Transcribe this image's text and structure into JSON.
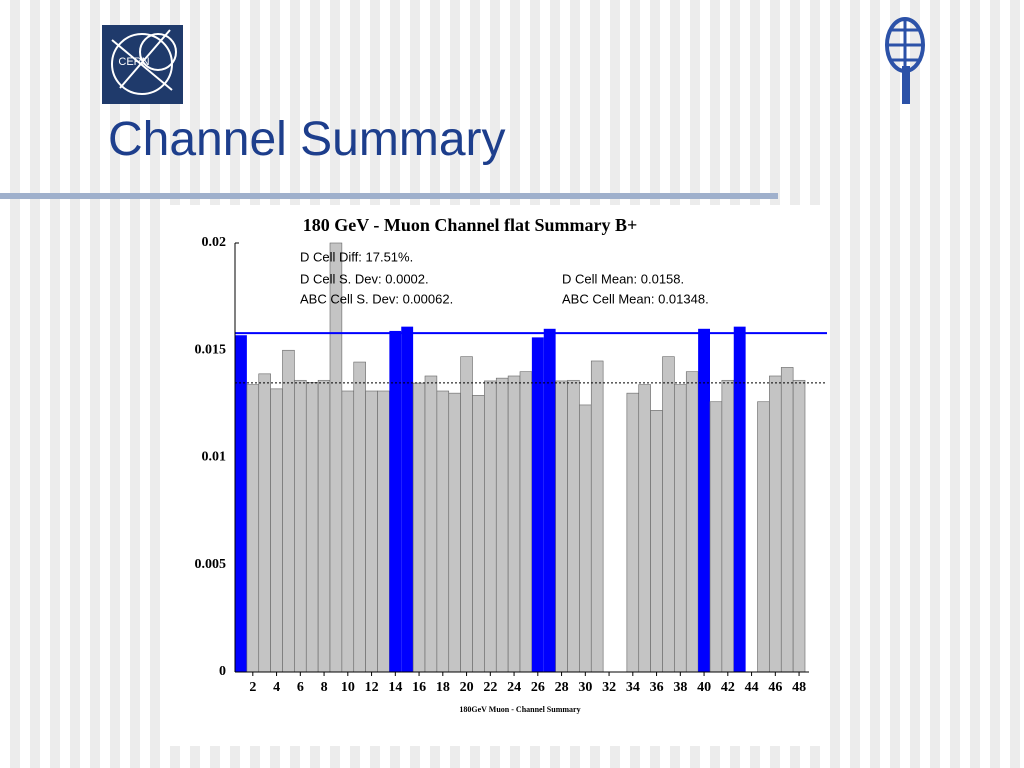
{
  "slide": {
    "title": "Channel Summary",
    "logo_text": "CERN"
  },
  "chart_data": {
    "type": "bar",
    "title": "180 GeV - Muon Channel flat Summary B+",
    "x_label": "180GeV Muon - Channel Summary",
    "x": [
      1,
      2,
      3,
      4,
      5,
      6,
      7,
      8,
      9,
      10,
      11,
      12,
      13,
      14,
      15,
      16,
      17,
      18,
      19,
      20,
      21,
      22,
      23,
      24,
      25,
      26,
      27,
      28,
      29,
      30,
      31,
      32,
      33,
      34,
      35,
      36,
      37,
      38,
      39,
      40,
      41,
      42,
      43,
      44,
      45,
      46,
      47,
      48
    ],
    "values": [
      0.0157,
      0.0134,
      0.0139,
      0.0132,
      0.015,
      0.0136,
      0.0135,
      0.0136,
      0.02,
      0.0131,
      0.01445,
      0.0131,
      0.0131,
      0.0159,
      0.0161,
      0.01347,
      0.0138,
      0.0131,
      0.013,
      0.0147,
      0.0129,
      0.01357,
      0.0137,
      0.0138,
      0.014,
      0.0156,
      0.016,
      0.01357,
      0.0136,
      0.01245,
      0.0145,
      0,
      0,
      0.013,
      0.0134,
      0.0122,
      0.0147,
      0.0134,
      0.014,
      0.016,
      0.0126,
      0.0136,
      0.0161,
      0,
      0.0126,
      0.0138,
      0.0142,
      0.0136
    ],
    "colors": [
      "#0000ff",
      "#c4c4c4",
      "#c4c4c4",
      "#c4c4c4",
      "#c4c4c4",
      "#c4c4c4",
      "#c4c4c4",
      "#c4c4c4",
      "#c4c4c4",
      "#c4c4c4",
      "#c4c4c4",
      "#c4c4c4",
      "#c4c4c4",
      "#0000ff",
      "#0000ff",
      "#c4c4c4",
      "#c4c4c4",
      "#c4c4c4",
      "#c4c4c4",
      "#c4c4c4",
      "#c4c4c4",
      "#c4c4c4",
      "#c4c4c4",
      "#c4c4c4",
      "#c4c4c4",
      "#0000ff",
      "#0000ff",
      "#c4c4c4",
      "#c4c4c4",
      "#c4c4c4",
      "#c4c4c4",
      "#c4c4c4",
      "#c4c4c4",
      "#c4c4c4",
      "#c4c4c4",
      "#c4c4c4",
      "#c4c4c4",
      "#c4c4c4",
      "#c4c4c4",
      "#0000ff",
      "#c4c4c4",
      "#c4c4c4",
      "#0000ff",
      "#c4c4c4",
      "#c4c4c4",
      "#c4c4c4",
      "#c4c4c4",
      "#c4c4c4"
    ],
    "xlim": [
      0.5,
      48.5
    ],
    "xticks": [
      2,
      4,
      6,
      8,
      10,
      12,
      14,
      16,
      18,
      20,
      22,
      24,
      26,
      28,
      30,
      32,
      34,
      36,
      38,
      40,
      42,
      44,
      46,
      48
    ],
    "ylim": [
      0,
      0.02
    ],
    "yticks": [
      0,
      0.005,
      0.01,
      0.015,
      0.02
    ],
    "reference_lines": [
      {
        "value": 0.0158,
        "color": "#0000ff",
        "style": "solid"
      },
      {
        "value": 0.01348,
        "color": "#000000",
        "style": "dotted"
      }
    ],
    "annotations": [
      "D Cell Diff: 17.51%.",
      "D Cell S. Dev: 0.0002.",
      "ABC Cell S. Dev: 0.00062.",
      "D Cell Mean: 0.0158.",
      "ABC Cell Mean: 0.01348."
    ]
  }
}
